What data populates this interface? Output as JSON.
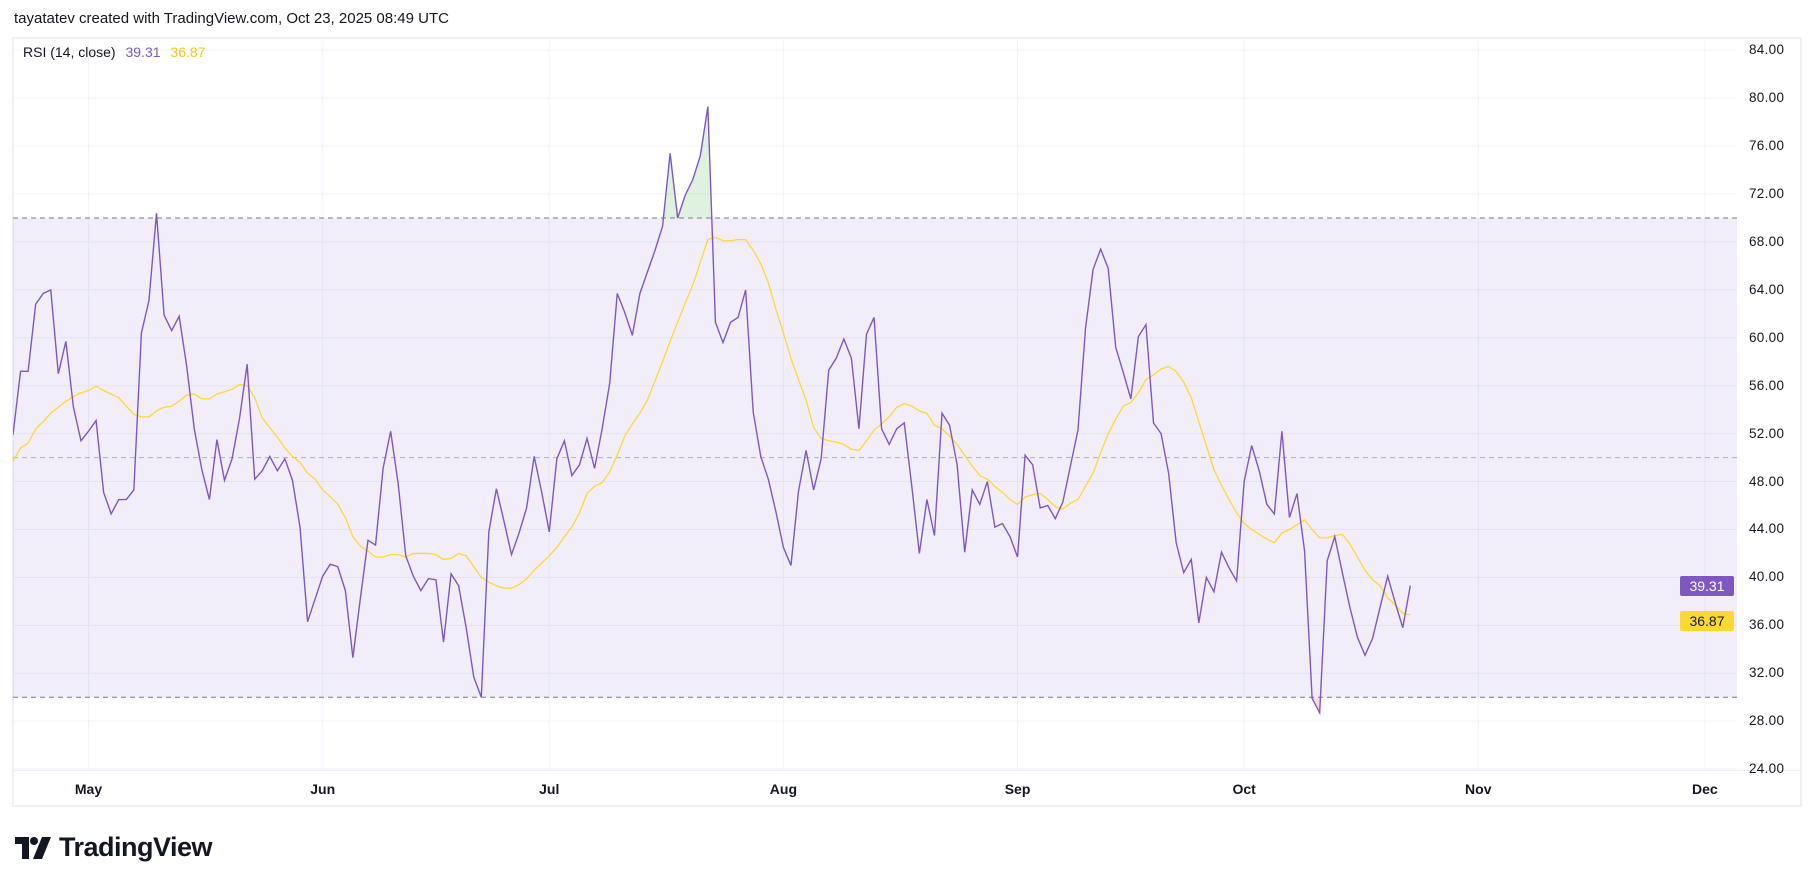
{
  "header": {
    "attribution": "tayatatev created with TradingView.com, Oct 23, 2025 08:49 UTC"
  },
  "legend": {
    "label": "RSI (14, close)",
    "rsi_value": "39.31",
    "ma_value": "36.87"
  },
  "brand": {
    "logo_text": "TradingView"
  },
  "colors": {
    "rsi": "#7E57C2",
    "ma": "#FDD835",
    "band_fill": "#F0ECF8",
    "band_line": "#787B86",
    "overbought_fill": "#D9F0DA",
    "grid": "#F0F3FA"
  },
  "chart_data": {
    "type": "line",
    "title": "RSI (14, close)",
    "ylim": [
      24,
      84
    ],
    "y_ticks": [
      "84.00",
      "80.00",
      "76.00",
      "72.00",
      "68.00",
      "64.00",
      "60.00",
      "56.00",
      "52.00",
      "48.00",
      "44.00",
      "40.00",
      "36.00",
      "32.00",
      "28.00",
      "24.00"
    ],
    "x_ticks": [
      "May",
      "Jun",
      "Jul",
      "Aug",
      "Sep",
      "Oct",
      "Nov",
      "Dec"
    ],
    "bands": {
      "upper": 70,
      "middle": 50,
      "lower": 30
    },
    "grid": true,
    "last_values": {
      "rsi": "39.31",
      "ma": "36.87"
    },
    "series": [
      {
        "name": "RSI",
        "values": [
          51.9,
          57.2,
          57.2,
          62.8,
          63.7,
          64.0,
          57.0,
          59.7,
          54.2,
          51.4,
          52.2,
          53.1,
          47.1,
          45.3,
          46.5,
          46.5,
          47.3,
          60.4,
          63.1,
          70.4,
          61.9,
          60.6,
          61.8,
          57.6,
          52.4,
          49.0,
          46.5,
          51.5,
          48.1,
          49.9,
          53.3,
          57.8,
          48.2,
          48.9,
          50.1,
          48.9,
          49.9,
          48.1,
          44.2,
          36.3,
          38.2,
          40.1,
          41.1,
          40.9,
          38.9,
          33.3,
          38.3,
          43.1,
          42.7,
          49.1,
          52.2,
          47.8,
          41.8,
          40.1,
          38.9,
          39.9,
          39.8,
          34.6,
          40.3,
          39.3,
          35.8,
          31.7,
          30.0,
          43.8,
          47.4,
          44.7,
          41.9,
          43.7,
          45.8,
          50.1,
          47.1,
          43.8,
          49.9,
          51.4,
          48.5,
          49.4,
          51.6,
          49.1,
          52.4,
          56.2,
          63.7,
          62.1,
          60.2,
          63.7,
          65.5,
          67.3,
          69.3,
          75.4,
          70.0,
          71.9,
          73.2,
          75.2,
          79.3,
          61.3,
          59.6,
          61.3,
          61.7,
          64.0,
          53.8,
          50.1,
          48.2,
          45.5,
          42.5,
          41.0,
          47.2,
          50.6,
          47.3,
          49.9,
          57.3,
          58.3,
          59.9,
          58.3,
          52.4,
          60.3,
          61.7,
          52.4,
          51.1,
          52.4,
          52.9,
          47.6,
          42.0,
          46.5,
          43.5,
          53.7,
          52.7,
          49.4,
          42.1,
          47.3,
          46.1,
          48.0,
          44.2,
          44.5,
          43.4,
          41.7,
          50.2,
          49.4,
          45.8,
          46.0,
          44.9,
          46.3,
          49.3,
          52.3,
          60.8,
          65.7,
          67.4,
          65.8,
          59.2,
          57.1,
          54.9,
          60.1,
          61.1,
          52.9,
          52.0,
          48.7,
          42.9,
          40.4,
          41.5,
          36.2,
          40.0,
          38.8,
          42.1,
          40.8,
          39.7,
          48.0,
          51.0,
          48.9,
          46.1,
          45.3,
          52.2,
          45.0,
          47.0,
          42.2,
          29.9,
          28.7,
          41.4,
          43.4,
          40.4,
          37.5,
          35.0,
          33.5,
          34.9,
          37.5,
          40.1,
          37.9,
          35.8,
          39.31
        ]
      },
      {
        "name": "RSI-based MA",
        "values": [
          49.7,
          50.8,
          51.2,
          52.4,
          53.0,
          53.7,
          54.2,
          54.7,
          55.1,
          55.4,
          55.6,
          55.96,
          55.6,
          55.3,
          55.0,
          54.3,
          53.6,
          53.4,
          53.4,
          53.9,
          54.2,
          54.3,
          54.7,
          55.2,
          55.3,
          54.9,
          54.9,
          55.3,
          55.5,
          55.7,
          56.1,
          56.0,
          55.0,
          53.3,
          52.5,
          51.7,
          50.8,
          50.1,
          49.6,
          48.7,
          48.2,
          47.3,
          46.75,
          46.1,
          45.0,
          43.4,
          42.6,
          42.2,
          41.7,
          41.7,
          41.9,
          41.9,
          41.7,
          42.0,
          42.0,
          42.0,
          41.9,
          41.5,
          41.6,
          42.0,
          41.8,
          40.9,
          40.0,
          39.6,
          39.3,
          39.1,
          39.1,
          39.4,
          39.9,
          40.6,
          41.2,
          41.8,
          42.5,
          43.4,
          44.2,
          45.4,
          47.0,
          47.6,
          47.9,
          48.8,
          50.2,
          51.8,
          52.8,
          53.7,
          54.8,
          56.4,
          58.0,
          59.7,
          61.3,
          62.9,
          64.4,
          66.3,
          68.2,
          68.4,
          68.1,
          68.1,
          68.2,
          68.2,
          67.3,
          66.2,
          64.6,
          62.4,
          60.4,
          58.3,
          56.5,
          54.8,
          52.5,
          51.6,
          51.4,
          51.3,
          51.1,
          50.7,
          50.6,
          51.4,
          52.3,
          52.8,
          53.4,
          54.2,
          54.5,
          54.3,
          53.9,
          53.7,
          52.7,
          52.4,
          51.8,
          51.1,
          50.2,
          49.3,
          48.5,
          48.2,
          47.6,
          47.1,
          46.5,
          46.1,
          46.7,
          46.9,
          47.0,
          46.5,
          45.9,
          45.7,
          46.2,
          46.5,
          47.6,
          48.7,
          50.4,
          52.0,
          53.2,
          54.3,
          54.6,
          55.4,
          56.5,
          56.9,
          57.4,
          57.6,
          57.2,
          56.3,
          55.0,
          53.0,
          51.0,
          49.0,
          47.7,
          46.5,
          45.4,
          44.5,
          44.0,
          43.6,
          43.2,
          42.9,
          43.7,
          44.0,
          44.4,
          44.8,
          44.0,
          43.3,
          43.3,
          43.5,
          43.6,
          42.8,
          41.7,
          40.6,
          39.8,
          39.3,
          38.3,
          37.7,
          37.0,
          36.87
        ]
      }
    ]
  }
}
